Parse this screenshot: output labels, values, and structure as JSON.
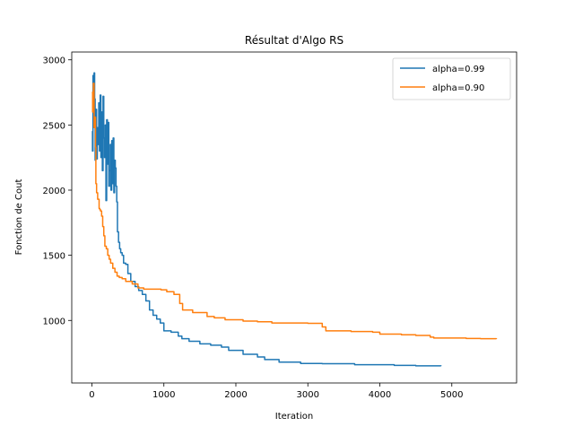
{
  "chart_data": {
    "type": "line",
    "title": "Résultat d'Algo RS",
    "xlabel": "Iteration",
    "ylabel": "Fonction de Cout",
    "xlim": [
      -280,
      5900
    ],
    "ylim": [
      520,
      3060
    ],
    "xticks": [
      0,
      1000,
      2000,
      3000,
      4000,
      5000
    ],
    "yticks": [
      1000,
      1500,
      2000,
      2500,
      3000
    ],
    "grid": false,
    "legend_position": "upper right",
    "series": [
      {
        "name": "alpha=0.99",
        "color": "#1f77b4",
        "step": true,
        "points": [
          [
            0,
            2450
          ],
          [
            8,
            2300
          ],
          [
            15,
            2880
          ],
          [
            22,
            2550
          ],
          [
            30,
            2900
          ],
          [
            38,
            2700
          ],
          [
            45,
            2230
          ],
          [
            55,
            2620
          ],
          [
            65,
            2240
          ],
          [
            75,
            2480
          ],
          [
            85,
            2350
          ],
          [
            95,
            2670
          ],
          [
            105,
            2300
          ],
          [
            115,
            2730
          ],
          [
            125,
            2250
          ],
          [
            135,
            2600
          ],
          [
            145,
            2150
          ],
          [
            155,
            2720
          ],
          [
            165,
            2400
          ],
          [
            175,
            2250
          ],
          [
            185,
            2500
          ],
          [
            195,
            1920
          ],
          [
            205,
            2540
          ],
          [
            215,
            2200
          ],
          [
            225,
            2520
          ],
          [
            235,
            2030
          ],
          [
            245,
            2150
          ],
          [
            255,
            2350
          ],
          [
            265,
            2000
          ],
          [
            275,
            2380
          ],
          [
            285,
            2050
          ],
          [
            295,
            2400
          ],
          [
            305,
            1980
          ],
          [
            315,
            2230
          ],
          [
            325,
            2170
          ],
          [
            335,
            2030
          ],
          [
            345,
            1910
          ],
          [
            355,
            1680
          ],
          [
            370,
            1600
          ],
          [
            385,
            1550
          ],
          [
            400,
            1520
          ],
          [
            420,
            1500
          ],
          [
            440,
            1440
          ],
          [
            470,
            1430
          ],
          [
            500,
            1360
          ],
          [
            540,
            1300
          ],
          [
            600,
            1260
          ],
          [
            650,
            1230
          ],
          [
            700,
            1200
          ],
          [
            750,
            1150
          ],
          [
            800,
            1080
          ],
          [
            850,
            1040
          ],
          [
            900,
            1010
          ],
          [
            950,
            980
          ],
          [
            1000,
            920
          ],
          [
            1100,
            910
          ],
          [
            1200,
            880
          ],
          [
            1250,
            860
          ],
          [
            1350,
            840
          ],
          [
            1500,
            820
          ],
          [
            1650,
            810
          ],
          [
            1800,
            795
          ],
          [
            1900,
            770
          ],
          [
            2100,
            740
          ],
          [
            2300,
            720
          ],
          [
            2400,
            700
          ],
          [
            2600,
            680
          ],
          [
            2900,
            670
          ],
          [
            3200,
            668
          ],
          [
            3650,
            660
          ],
          [
            4200,
            655
          ],
          [
            4500,
            652
          ],
          [
            4850,
            650
          ]
        ]
      },
      {
        "name": "alpha=0.90",
        "color": "#ff7f0e",
        "step": true,
        "points": [
          [
            0,
            2750
          ],
          [
            10,
            2600
          ],
          [
            20,
            2820
          ],
          [
            30,
            2480
          ],
          [
            40,
            2560
          ],
          [
            50,
            2330
          ],
          [
            55,
            2050
          ],
          [
            65,
            1980
          ],
          [
            80,
            1930
          ],
          [
            100,
            1860
          ],
          [
            110,
            1850
          ],
          [
            120,
            1840
          ],
          [
            135,
            1800
          ],
          [
            150,
            1720
          ],
          [
            165,
            1650
          ],
          [
            180,
            1570
          ],
          [
            200,
            1550
          ],
          [
            220,
            1500
          ],
          [
            240,
            1470
          ],
          [
            260,
            1440
          ],
          [
            290,
            1400
          ],
          [
            320,
            1370
          ],
          [
            350,
            1340
          ],
          [
            380,
            1330
          ],
          [
            420,
            1320
          ],
          [
            470,
            1300
          ],
          [
            560,
            1280
          ],
          [
            640,
            1250
          ],
          [
            720,
            1240
          ],
          [
            960,
            1235
          ],
          [
            1040,
            1220
          ],
          [
            1140,
            1200
          ],
          [
            1220,
            1130
          ],
          [
            1260,
            1080
          ],
          [
            1400,
            1060
          ],
          [
            1600,
            1030
          ],
          [
            1700,
            1020
          ],
          [
            1850,
            1005
          ],
          [
            2100,
            995
          ],
          [
            2300,
            990
          ],
          [
            2500,
            980
          ],
          [
            3000,
            978
          ],
          [
            3200,
            950
          ],
          [
            3250,
            920
          ],
          [
            3600,
            915
          ],
          [
            3900,
            910
          ],
          [
            4000,
            895
          ],
          [
            4300,
            890
          ],
          [
            4500,
            885
          ],
          [
            4700,
            872
          ],
          [
            4750,
            865
          ],
          [
            5200,
            862
          ],
          [
            5400,
            860
          ],
          [
            5620,
            858
          ]
        ]
      }
    ]
  }
}
